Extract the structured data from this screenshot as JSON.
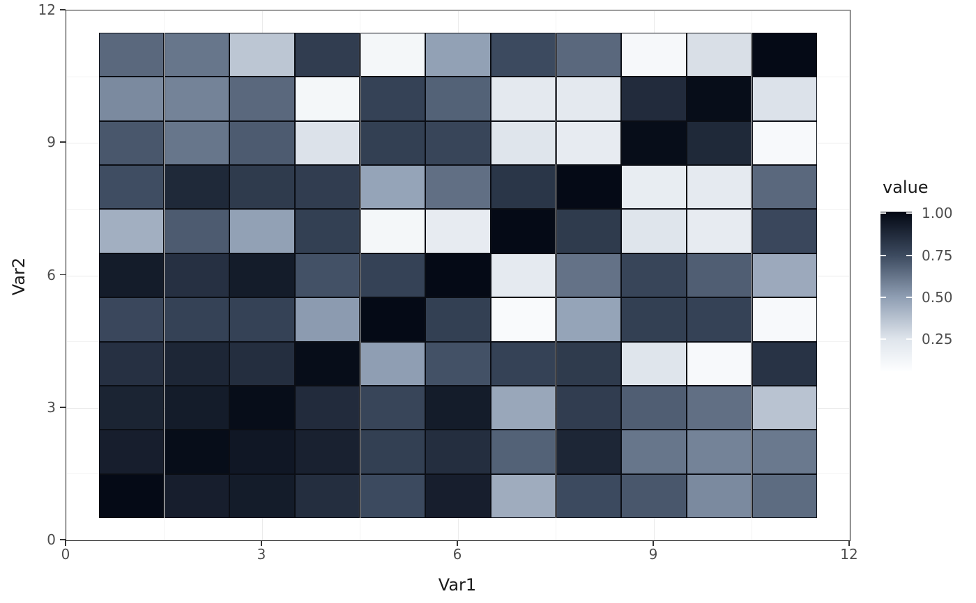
{
  "chart_data": {
    "type": "heatmap",
    "title": "",
    "xlabel": "Var1",
    "ylabel": "Var2",
    "xlim": [
      0,
      12
    ],
    "ylim": [
      0,
      12
    ],
    "x_ticks": [
      0,
      3,
      6,
      9,
      12
    ],
    "y_ticks": [
      0,
      3,
      6,
      9,
      12
    ],
    "x_minor_gridlines": [
      1.5,
      4.5,
      7.5,
      10.5
    ],
    "y_minor_gridlines": [
      1.5,
      4.5,
      7.5,
      10.5
    ],
    "grid": true,
    "var1_levels": [
      1,
      2,
      3,
      4,
      5,
      6,
      7,
      8,
      9,
      10,
      11
    ],
    "var2_levels": [
      1,
      2,
      3,
      4,
      5,
      6,
      7,
      8,
      9,
      10,
      11
    ],
    "values_by_var2_row_1_to_11": [
      [
        1.0,
        0.92,
        0.93,
        0.86,
        0.75,
        0.92,
        0.45,
        0.75,
        0.71,
        0.56,
        0.65
      ],
      [
        0.92,
        0.99,
        0.95,
        0.91,
        0.79,
        0.86,
        0.68,
        0.89,
        0.62,
        0.58,
        0.61
      ],
      [
        0.9,
        0.93,
        0.99,
        0.87,
        0.77,
        0.93,
        0.47,
        0.8,
        0.69,
        0.64,
        0.37
      ],
      [
        0.85,
        0.89,
        0.86,
        0.99,
        0.5,
        0.73,
        0.78,
        0.81,
        0.25,
        0.09,
        0.84
      ],
      [
        0.76,
        0.78,
        0.78,
        0.51,
        1.0,
        0.79,
        0.08,
        0.48,
        0.79,
        0.78,
        0.09
      ],
      [
        0.93,
        0.85,
        0.93,
        0.73,
        0.78,
        1.0,
        0.21,
        0.63,
        0.77,
        0.69,
        0.46
      ],
      [
        0.44,
        0.7,
        0.49,
        0.79,
        0.11,
        0.2,
        1.0,
        0.81,
        0.25,
        0.2,
        0.76
      ],
      [
        0.74,
        0.88,
        0.81,
        0.8,
        0.48,
        0.64,
        0.83,
        1.0,
        0.19,
        0.21,
        0.66
      ],
      [
        0.71,
        0.62,
        0.7,
        0.26,
        0.79,
        0.77,
        0.25,
        0.2,
        0.99,
        0.88,
        0.09
      ],
      [
        0.56,
        0.58,
        0.66,
        0.11,
        0.78,
        0.68,
        0.22,
        0.22,
        0.87,
        0.99,
        0.26
      ],
      [
        0.66,
        0.62,
        0.36,
        0.8,
        0.11,
        0.49,
        0.75,
        0.66,
        0.1,
        0.27,
        1.0
      ]
    ],
    "legend": {
      "title": "value",
      "position": "right",
      "tick_values": [
        1.0,
        0.75,
        0.5,
        0.25
      ],
      "tick_labels": [
        "1.00",
        "0.75",
        "0.50",
        "0.25"
      ],
      "bar_value_range": [
        0.06,
        1.01
      ]
    },
    "color_scale": {
      "low_color": "#fdfeff",
      "high_color": "#050a16",
      "stops": [
        {
          "value": 0.05,
          "color": "#fdfeff"
        },
        {
          "value": 0.25,
          "color": "#dfe5ec"
        },
        {
          "value": 0.5,
          "color": "#8f9eb3"
        },
        {
          "value": 0.75,
          "color": "#3c4a5f"
        },
        {
          "value": 1.0,
          "color": "#050a16"
        }
      ]
    },
    "style_colors": {
      "panel_border": "#333333",
      "major_grid": "#ebebeb",
      "minor_grid": "#f3f3f3",
      "tile_border": "#0b0e15",
      "tick_text": "#4d4d4d",
      "title_text": "#1a1a1a",
      "background": "#ffffff"
    }
  }
}
